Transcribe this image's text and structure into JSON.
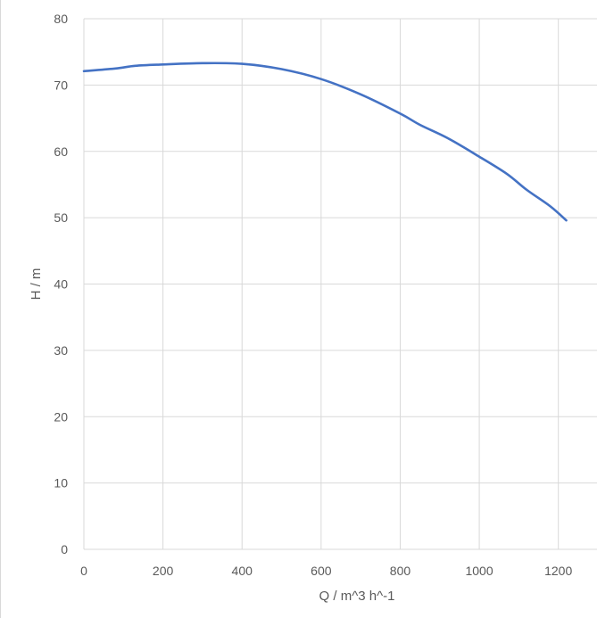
{
  "chart_data": {
    "type": "line",
    "title": "",
    "xlabel": "Q / m^3 h^-1",
    "ylabel": "H / m",
    "xlim": [
      0,
      1300
    ],
    "ylim": [
      0,
      80
    ],
    "x_ticks": [
      0,
      200,
      400,
      600,
      800,
      1000,
      1200
    ],
    "y_ticks": [
      0,
      10,
      20,
      30,
      40,
      50,
      60,
      70,
      80
    ],
    "grid": true,
    "legend": "none",
    "series_color": "#4472c4",
    "series": [
      {
        "x": [
          0,
          80,
          130,
          200,
          300,
          400,
          500,
          600,
          700,
          800,
          850,
          920,
          1000,
          1070,
          1120,
          1180,
          1220
        ],
        "values": [
          72.1,
          72.5,
          72.9,
          73.1,
          73.3,
          73.2,
          72.4,
          70.9,
          68.6,
          65.7,
          64.0,
          62.0,
          59.2,
          56.6,
          54.2,
          51.7,
          49.6
        ]
      }
    ]
  }
}
